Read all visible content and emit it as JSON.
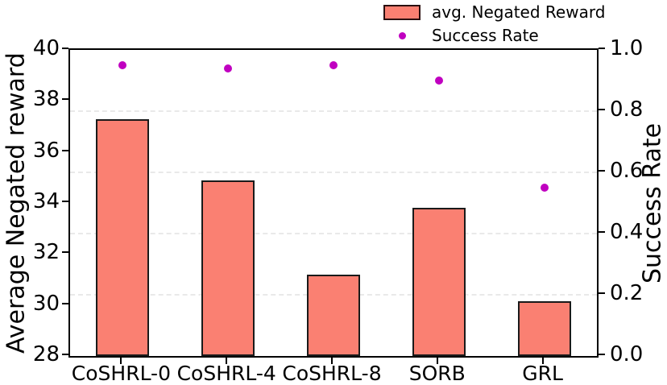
{
  "chart_data": {
    "type": "bar",
    "title": "",
    "categories": [
      "CoSHRL-0",
      "CoSHRL-4",
      "CoSHRL-8",
      "SORB",
      "GRL"
    ],
    "series": [
      {
        "name": "avg. Negated Reward",
        "type": "bar",
        "axis": "left",
        "values": [
          37.3,
          34.9,
          31.2,
          33.8,
          30.15
        ]
      },
      {
        "name": "Success Rate",
        "type": "scatter",
        "axis": "right",
        "values": [
          0.95,
          0.94,
          0.95,
          0.9,
          0.55
        ]
      }
    ],
    "left_axis": {
      "label": "Average Negated reward",
      "min": 28,
      "max": 40,
      "ticks": [
        {
          "value": 40,
          "label": "40"
        },
        {
          "value": 38,
          "label": "38"
        },
        {
          "value": 36,
          "label": "36"
        },
        {
          "value": 34,
          "label": "34"
        },
        {
          "value": 32,
          "label": "32"
        },
        {
          "value": 30,
          "label": "30"
        },
        {
          "value": 28,
          "label": "28"
        }
      ]
    },
    "right_axis": {
      "label": "Success Rate",
      "min": 0.0,
      "max": 1.0,
      "ticks": [
        {
          "value": 1.0,
          "label": "1.0"
        },
        {
          "value": 0.8,
          "label": "0.8"
        },
        {
          "value": 0.6,
          "label": "0.6"
        },
        {
          "value": 0.4,
          "label": "0.4"
        },
        {
          "value": 0.2,
          "label": "0.2"
        },
        {
          "value": 0.0,
          "label": "0.0"
        }
      ],
      "gridline_values": [
        0.8,
        0.6,
        0.4,
        0.2
      ]
    },
    "grid": "horizontal dashed at right-axis ticks",
    "legend_position": "top-right",
    "legend": {
      "items": [
        {
          "label": "avg. Negated Reward",
          "marker": "bar-swatch"
        },
        {
          "label": "Success Rate",
          "marker": "dot"
        }
      ]
    },
    "colors": {
      "bar_fill": "#FA8072",
      "bar_edge": "#1a1a1a",
      "dot": "#C000C0",
      "grid": "#e9e9e9",
      "text": "#000000",
      "background": "#ffffff"
    }
  }
}
